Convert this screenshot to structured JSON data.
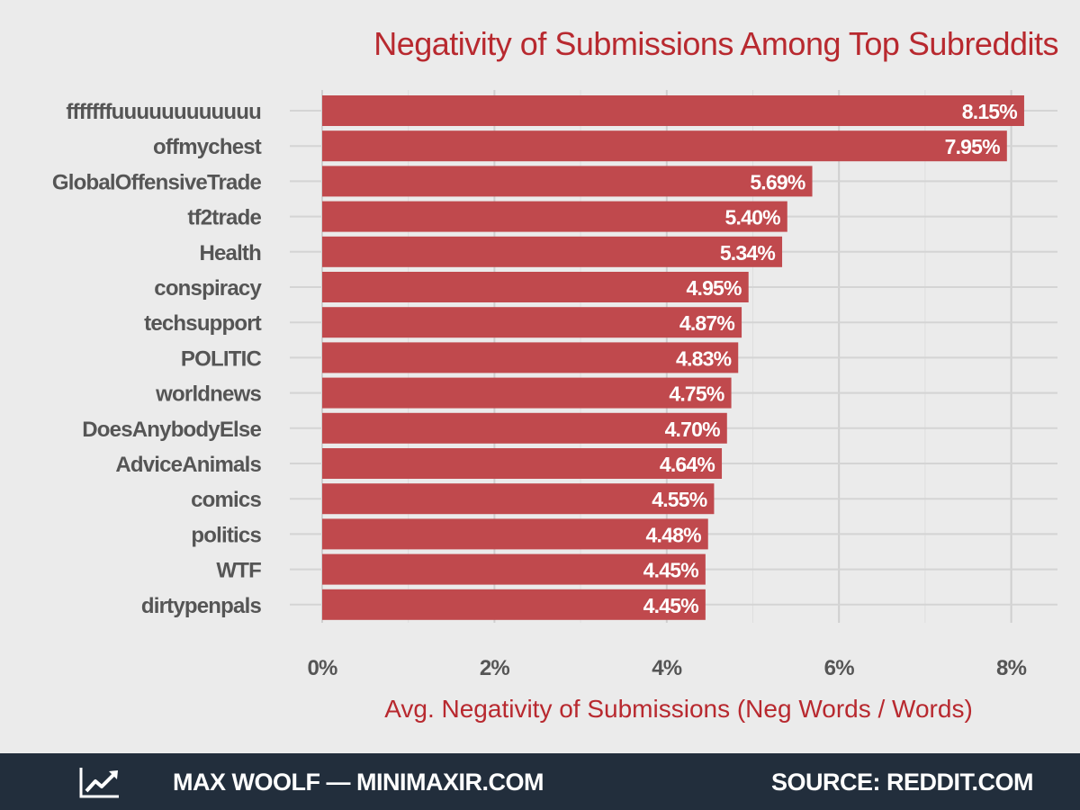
{
  "chart_data": {
    "type": "bar",
    "orientation": "horizontal",
    "title": "Negativity of Submissions Among Top Subreddits",
    "xlabel": "Avg. Negativity of Submissions (Neg Words / Words)",
    "ylabel": "",
    "categories": [
      "fffffffuuuuuuuuuuuu",
      "offmychest",
      "GlobalOffensiveTrade",
      "tf2trade",
      "Health",
      "conspiracy",
      "techsupport",
      "POLITIC",
      "worldnews",
      "DoesAnybodyElse",
      "AdviceAnimals",
      "comics",
      "politics",
      "WTF",
      "dirtypenpals"
    ],
    "values": [
      8.15,
      7.95,
      5.69,
      5.4,
      5.34,
      4.95,
      4.87,
      4.83,
      4.75,
      4.7,
      4.64,
      4.55,
      4.48,
      4.45,
      4.45
    ],
    "data_labels": [
      "8.15%",
      "7.95%",
      "5.69%",
      "5.40%",
      "5.34%",
      "4.95%",
      "4.87%",
      "4.83%",
      "4.75%",
      "4.70%",
      "4.64%",
      "4.55%",
      "4.48%",
      "4.45%",
      "4.45%"
    ],
    "x_ticks": [
      0,
      2,
      4,
      6,
      8
    ],
    "x_tick_labels": [
      "0%",
      "2%",
      "4%",
      "6%",
      "8%"
    ],
    "xlim": [
      0,
      8.5
    ],
    "grid": true,
    "legend": "none",
    "bar_color": "#c0494d",
    "title_color": "#b8292f",
    "background": "#ebebeb"
  },
  "footer": {
    "author": "MAX WOOLF — MINIMAXIR.COM",
    "source": "SOURCE: REDDIT.COM",
    "logo_icon": "trend-line-icon",
    "background": "#222e3c"
  }
}
